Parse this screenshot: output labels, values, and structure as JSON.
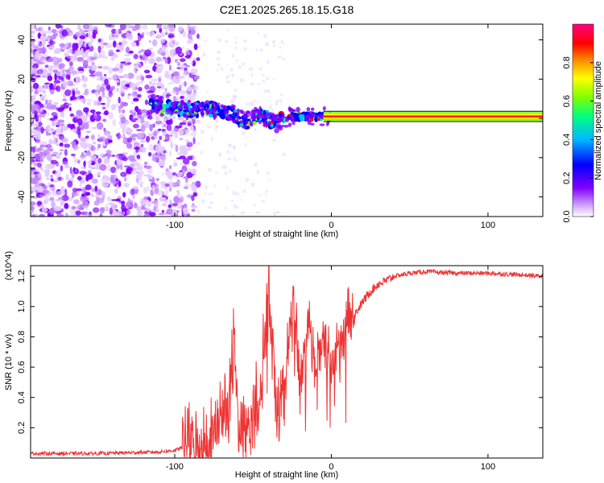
{
  "title": "C2E1.2025.265.18.15.G18",
  "chart_data": [
    {
      "type": "heatmap",
      "name": "spectrogram",
      "xlabel": "Height of straight line (km)",
      "ylabel": "Frequency (Hz)",
      "xlim": [
        -192,
        135
      ],
      "ylim": [
        -50,
        48
      ],
      "xticks": [
        -100,
        0,
        100
      ],
      "yticks": [
        -40,
        -20,
        0,
        20,
        40
      ],
      "xtick_labels": [
        "-100",
        "0",
        "100"
      ],
      "ytick_labels": [
        "-40",
        "-20",
        "0",
        "20",
        "40"
      ],
      "colorbar": {
        "label": "Normalized spectral amplitude",
        "range": [
          0.0,
          1.0
        ],
        "ticks": [
          0.0,
          0.2,
          0.4,
          0.6,
          0.8
        ],
        "tick_labels": [
          "0.0",
          "0.2",
          "0.4",
          "0.6",
          "0.8"
        ],
        "colors": [
          "#ffffff",
          "#c080ff",
          "#8000ff",
          "#0000ff",
          "#00c0ff",
          "#00ff80",
          "#80ff00",
          "#ffff00",
          "#ff8000",
          "#ff0000",
          "#ff0080"
        ]
      },
      "noise_region_km": [
        -192,
        -85
      ],
      "signal_track": {
        "x": [
          -115,
          -110,
          -100,
          -90,
          -80,
          -70,
          -60,
          -55,
          -50,
          -45,
          -40,
          -35,
          -30,
          -25,
          -20,
          -15,
          -10,
          -5,
          0,
          135
        ],
        "y": [
          7,
          6,
          5,
          4,
          5,
          4,
          1,
          -2,
          0,
          2,
          -1,
          -2,
          0,
          1,
          1,
          1,
          1,
          1,
          1,
          1
        ]
      },
      "carrier_frequency_hz": 1
    },
    {
      "type": "line",
      "name": "snr",
      "xlabel": "Height of straight line (km)",
      "ylabel": "SNR (10 * v/v)",
      "scale_note": "(x10^4)",
      "xlim": [
        -192,
        135
      ],
      "ylim": [
        0,
        1.27
      ],
      "xticks": [
        -100,
        0,
        100
      ],
      "xtick_labels": [
        "-100",
        "0",
        "100"
      ],
      "yticks": [
        0.2,
        0.4,
        0.6,
        0.8,
        1.0,
        1.2
      ],
      "ytick_labels": [
        "0.2",
        "0.4",
        "0.6",
        "0.8",
        "1.0",
        "1.2"
      ],
      "color": "#ee3333",
      "series": [
        {
          "name": "SNR",
          "x": [
            -192,
            -150,
            -110,
            -100,
            -95,
            -92,
            -90,
            -85,
            -80,
            -75,
            -70,
            -65,
            -62,
            -60,
            -55,
            -50,
            -45,
            -40,
            -35,
            -30,
            -25,
            -20,
            -15,
            -10,
            -5,
            0,
            5,
            10,
            15,
            20,
            25,
            30,
            35,
            40,
            45,
            50,
            60,
            80,
            100,
            120,
            135
          ],
          "y": [
            0.03,
            0.03,
            0.04,
            0.05,
            0.07,
            0.12,
            0.08,
            0.07,
            0.1,
            0.16,
            0.25,
            0.45,
            0.78,
            0.3,
            0.15,
            0.25,
            0.5,
            1.1,
            0.3,
            0.5,
            1.0,
            0.5,
            0.9,
            0.6,
            0.8,
            0.6,
            0.75,
            0.9,
            0.95,
            1.03,
            1.1,
            1.15,
            1.17,
            1.2,
            1.21,
            1.22,
            1.23,
            1.22,
            1.22,
            1.21,
            1.2
          ]
        }
      ]
    }
  ]
}
